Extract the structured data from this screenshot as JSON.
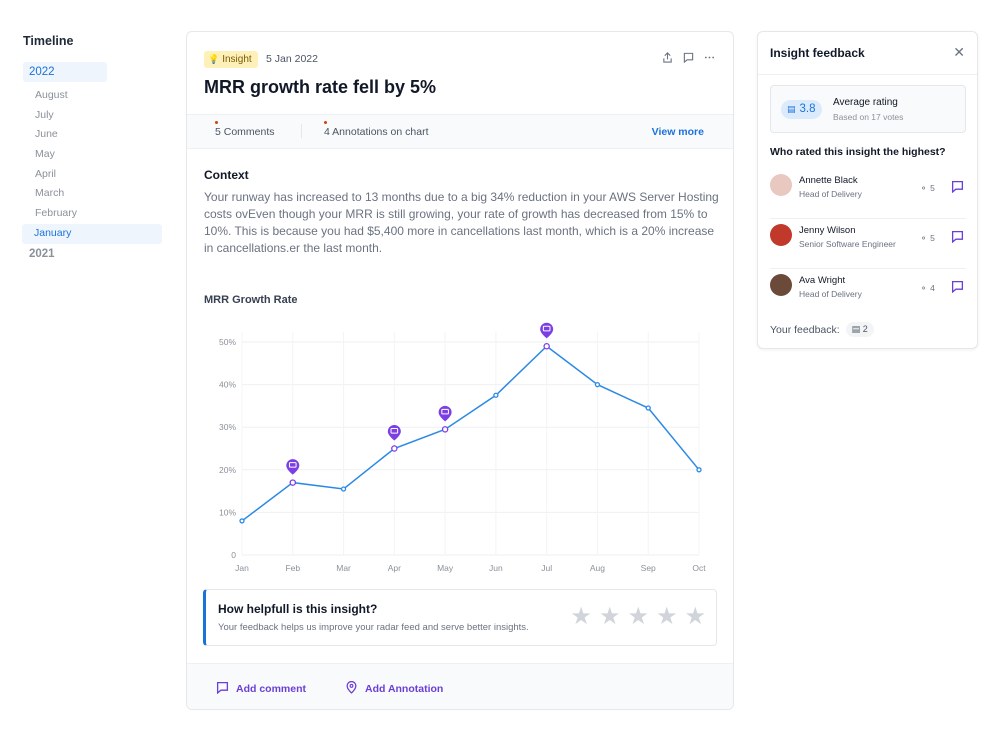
{
  "timeline": {
    "heading": "Timeline",
    "years": [
      {
        "label": "2022",
        "months": [
          "August",
          "July",
          "June",
          "May",
          "April",
          "March",
          "February",
          "January"
        ],
        "active_month": "January"
      },
      {
        "label": "2021"
      }
    ]
  },
  "insight": {
    "badge": "Insight",
    "date": "5 Jan 2022",
    "title": "MRR growth rate fell by 5%",
    "comments": "5 Comments",
    "annotations": "4 Annotations on chart",
    "view_more": "View  more",
    "context_title": "Context",
    "context_text": "Your runway has increased to 13 months due to a big 34% reduction in your AWS Server Hosting costs ovEven though your MRR is still growing, your rate of growth has decreased from 15% to 10%. This is because you had $5,400 more in cancellations last month, which is a 20% increase in cancellations.er the last month.",
    "helpful_question": "How helpfull is this insight?",
    "helpful_sub": "Your feedback helps us improve your radar feed and serve better insights.",
    "add_comment": "Add comment",
    "add_annotation": "Add Annotation",
    "icons": [
      "share-icon",
      "comment-icon",
      "more-icon"
    ]
  },
  "chart_data": {
    "type": "line",
    "title": "MRR Growth Rate",
    "categories": [
      "Jan",
      "Feb",
      "Mar",
      "Apr",
      "May",
      "Jun",
      "Jul",
      "Aug",
      "Sep",
      "Oct"
    ],
    "series": [
      {
        "values": [
          8,
          17,
          15.5,
          25,
          29.5,
          37.5,
          49,
          40,
          34.5,
          20
        ]
      }
    ],
    "annotated": [
      "Feb",
      "Apr",
      "May",
      "Jul"
    ],
    "ylim": [
      0,
      50
    ],
    "yticks": [
      "0",
      "10%",
      "20%",
      "30%",
      "40%",
      "50%"
    ],
    "grid": true,
    "line_color": "#2b89e6",
    "marker_color": "#7b3fe4"
  },
  "feedback": {
    "title": "Insight feedback",
    "average_value": "3.8",
    "average_label": "Average rating",
    "average_sub": "Based on 17 votes",
    "who_title": "Who rated this insight the highest?",
    "people": [
      {
        "name": "Annette Black",
        "role": "Head of Delivery",
        "score": "5",
        "avatar_color": "#e8c8c0"
      },
      {
        "name": "Jenny Wilson",
        "role": "Senior Software Engineer",
        "score": "5",
        "avatar_color": "#c0392b"
      },
      {
        "name": "Ava Wright",
        "role": "Head of Delivery",
        "score": "4",
        "avatar_color": "#6b4a3a"
      }
    ],
    "your_label": "Your feedback:",
    "your_value": "2"
  }
}
